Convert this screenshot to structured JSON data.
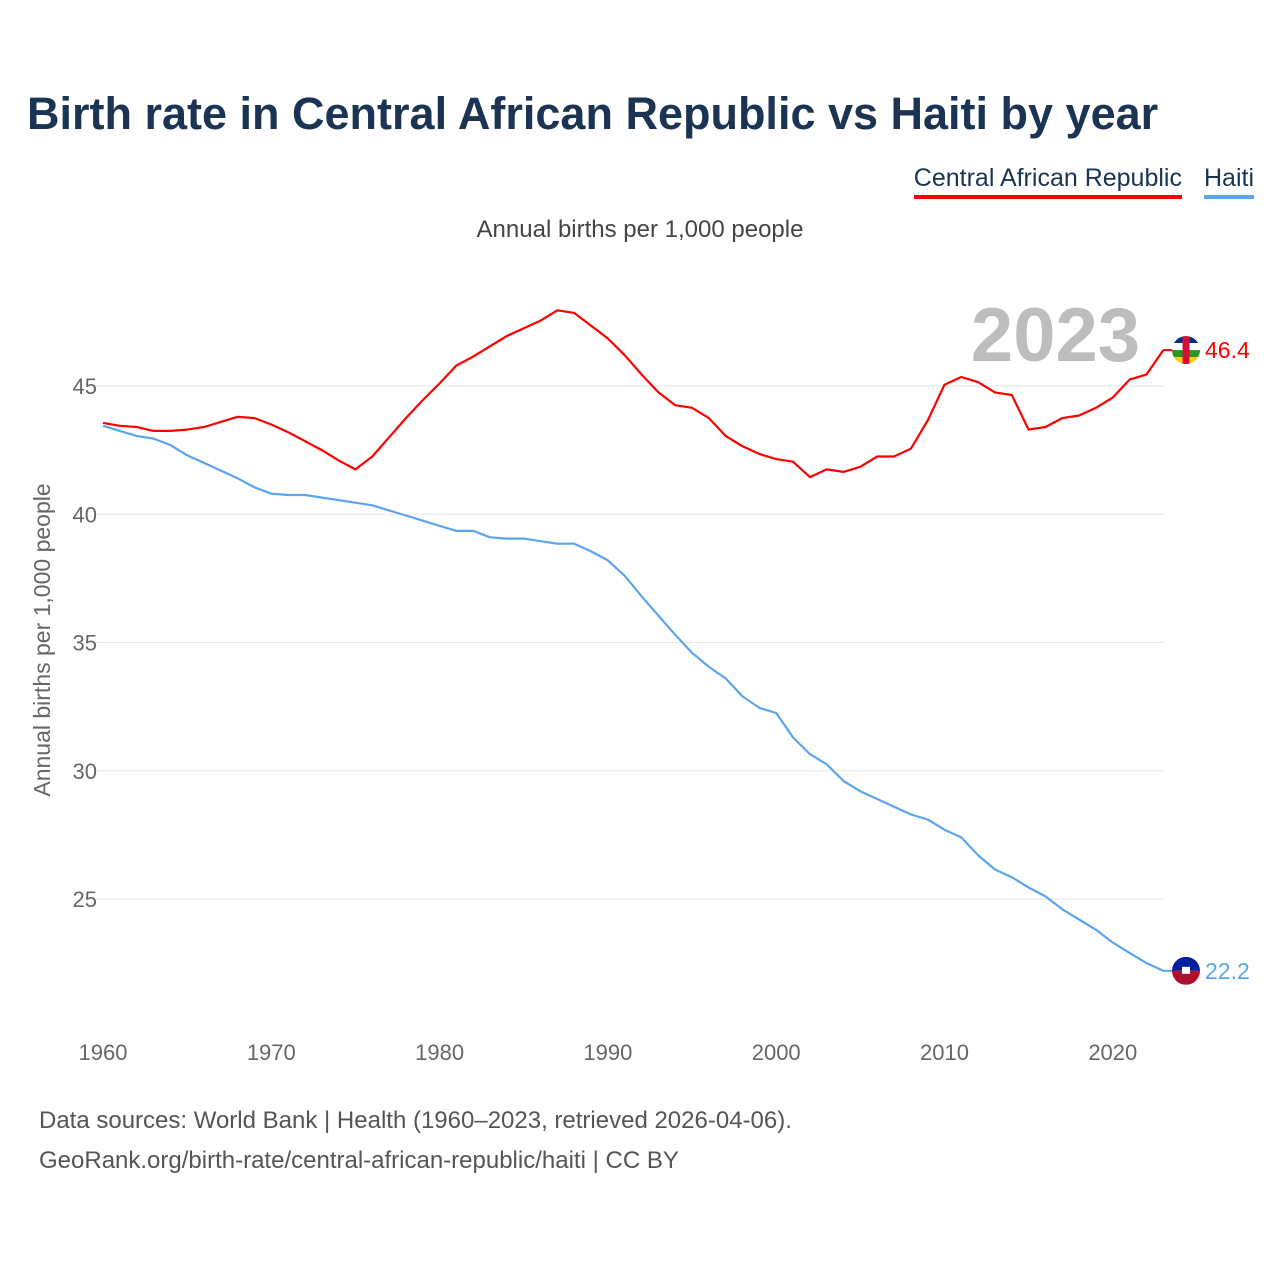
{
  "title": "Birth rate in Central African Republic vs Haiti by year",
  "subtitle": "Annual births per 1,000 people",
  "year_badge": "2023",
  "footer": {
    "line1": "Data sources: World Bank | Health (1960–2023, retrieved 2026-04-06).",
    "line2": "GeoRank.org/birth-rate/central-african-republic/haiti | CC BY"
  },
  "chart_data": {
    "type": "line",
    "title": "Birth rate in Central African Republic vs Haiti by year",
    "xlabel": "",
    "ylabel": "Annual births per 1,000 people",
    "xlim": [
      1960,
      2023
    ],
    "ylim": [
      20.5,
      49
    ],
    "xticks": [
      1960,
      1970,
      1980,
      1990,
      2000,
      2010,
      2020
    ],
    "yticks": [
      25,
      30,
      35,
      40,
      45
    ],
    "grid": true,
    "legend_position": "top-right",
    "x": [
      1960,
      1961,
      1962,
      1963,
      1964,
      1965,
      1966,
      1967,
      1968,
      1969,
      1970,
      1971,
      1972,
      1973,
      1974,
      1975,
      1976,
      1977,
      1978,
      1979,
      1980,
      1981,
      1982,
      1983,
      1984,
      1985,
      1986,
      1987,
      1988,
      1989,
      1990,
      1991,
      1992,
      1993,
      1994,
      1995,
      1996,
      1997,
      1998,
      1999,
      2000,
      2001,
      2002,
      2003,
      2004,
      2005,
      2006,
      2007,
      2008,
      2009,
      2010,
      2011,
      2012,
      2013,
      2014,
      2015,
      2016,
      2017,
      2018,
      2019,
      2020,
      2021,
      2022,
      2023
    ],
    "series": [
      {
        "name": "Central African Republic",
        "color": "#ff0000",
        "end_label": "46.4",
        "values": [
          43.56,
          43.45,
          43.4,
          43.25,
          43.25,
          43.3,
          43.4,
          43.6,
          43.8,
          43.75,
          43.5,
          43.2,
          42.85,
          42.5,
          42.1,
          41.75,
          42.25,
          43.0,
          43.75,
          44.45,
          45.1,
          45.8,
          46.15,
          46.55,
          46.95,
          47.25,
          47.55,
          47.95,
          47.85,
          47.35,
          46.85,
          46.2,
          45.45,
          44.75,
          44.25,
          44.15,
          43.75,
          43.05,
          42.65,
          42.35,
          42.15,
          42.05,
          41.45,
          41.75,
          41.65,
          41.85,
          42.25,
          42.25,
          42.55,
          43.65,
          45.05,
          45.35,
          45.15,
          44.75,
          44.65,
          43.3,
          43.4,
          43.75,
          43.85,
          44.15,
          44.55,
          45.25,
          45.45,
          46.4
        ]
      },
      {
        "name": "Haiti",
        "color": "#5aa5ec",
        "end_label": "22.2",
        "values": [
          43.45,
          43.25,
          43.05,
          42.95,
          42.7,
          42.3,
          42.0,
          41.7,
          41.4,
          41.05,
          40.8,
          40.75,
          40.75,
          40.65,
          40.55,
          40.45,
          40.35,
          40.15,
          39.95,
          39.75,
          39.55,
          39.35,
          39.35,
          39.1,
          39.05,
          39.05,
          38.95,
          38.85,
          38.85,
          38.55,
          38.2,
          37.6,
          36.8,
          36.05,
          35.3,
          34.6,
          34.05,
          33.6,
          32.9,
          32.45,
          32.25,
          31.3,
          30.65,
          30.25,
          29.6,
          29.2,
          28.9,
          28.6,
          28.3,
          28.1,
          27.7,
          27.4,
          26.7,
          26.15,
          25.85,
          25.45,
          25.1,
          24.6,
          24.2,
          23.8,
          23.3,
          22.9,
          22.5,
          22.2
        ]
      }
    ]
  }
}
